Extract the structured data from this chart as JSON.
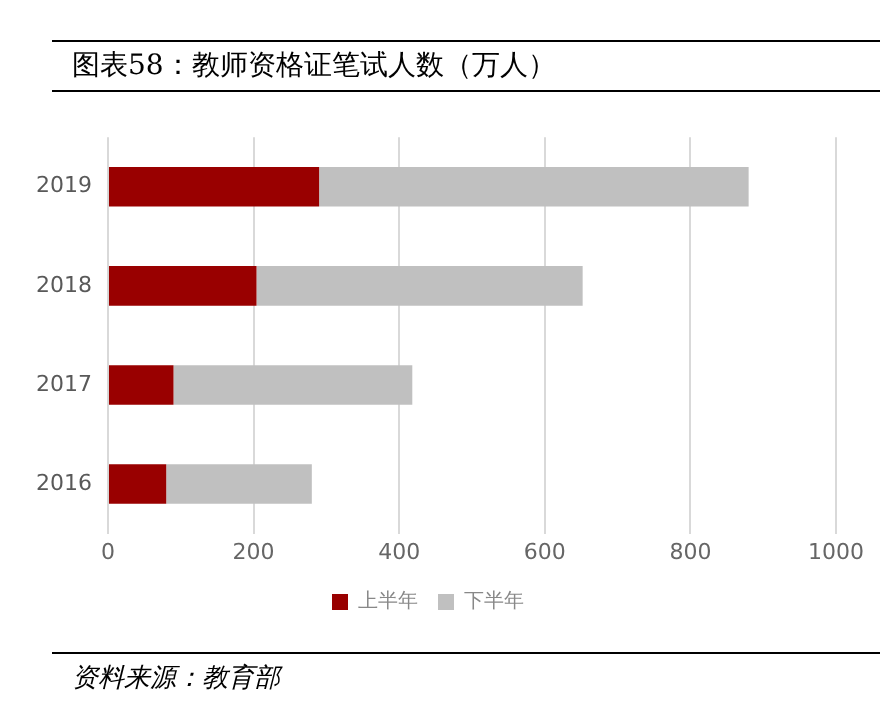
{
  "chart_data": {
    "type": "bar",
    "title": "图表58：教师资格证笔试人数（万人）",
    "orientation": "horizontal",
    "stacked": true,
    "categories": [
      "2019",
      "2018",
      "2017",
      "2016"
    ],
    "series": [
      {
        "name": "上半年",
        "color": "#990000",
        "values": [
          290,
          204,
          90,
          80
        ]
      },
      {
        "name": "下半年",
        "color": "#c0c0c0",
        "values": [
          590,
          448,
          328,
          200
        ]
      }
    ],
    "xlim": [
      0,
      1000
    ],
    "xticks": [
      0,
      200,
      400,
      600,
      800,
      1000
    ],
    "grid": "x",
    "legend": "bottom",
    "annotations": [
      "资料来源：教育部"
    ]
  }
}
